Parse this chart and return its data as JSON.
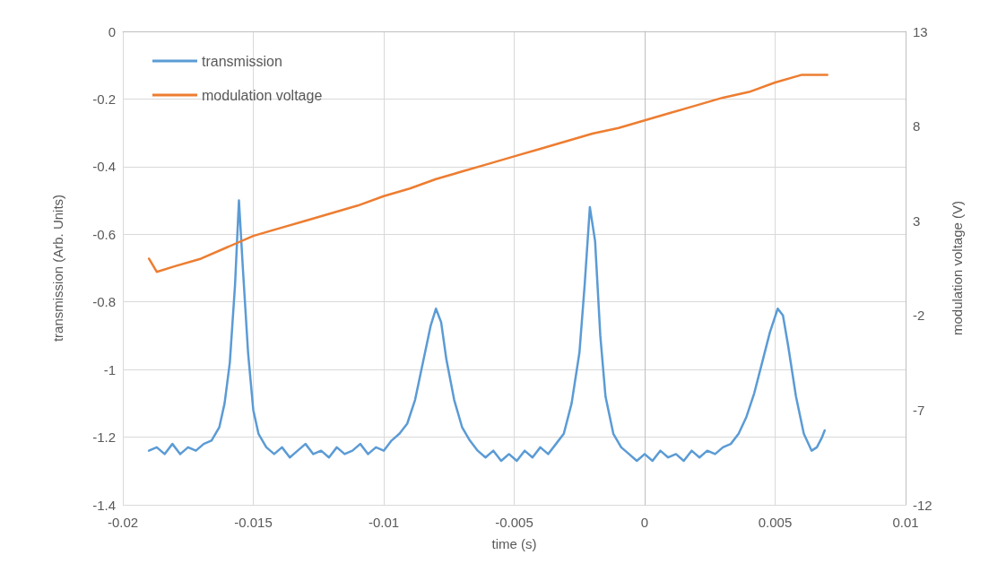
{
  "chart_data": {
    "type": "line",
    "xlabel": "time (s)",
    "ylabel": "transmission (Arb. Units)",
    "y2label": "modulation voltage (V)",
    "xlim": [
      -0.02,
      0.01
    ],
    "xticks": [
      -0.02,
      -0.015,
      -0.01,
      -0.005,
      0,
      0.005,
      0.01
    ],
    "ylim": [
      -1.4,
      0
    ],
    "yticks": [
      -1.4,
      -1.2,
      -1,
      -0.8,
      -0.6,
      -0.4,
      -0.2,
      0
    ],
    "y2lim": [
      -12,
      13
    ],
    "y2ticks": [
      -12,
      -7,
      -2,
      3,
      8,
      13
    ],
    "grid": true,
    "legend": "top left",
    "marker": "none",
    "line_style": "solid",
    "series": [
      {
        "name": "transmission",
        "color": "#5b9bd5",
        "x": [
          -0.019,
          -0.0187,
          -0.0184,
          -0.0181,
          -0.0178,
          -0.0175,
          -0.0172,
          -0.0169,
          -0.0166,
          -0.0163,
          -0.0161,
          -0.0159,
          -0.0157,
          -0.01555,
          -0.0154,
          -0.0152,
          -0.015,
          -0.0148,
          -0.0145,
          -0.0142,
          -0.0139,
          -0.0136,
          -0.0133,
          -0.013,
          -0.0127,
          -0.0124,
          -0.0121,
          -0.0118,
          -0.0115,
          -0.0112,
          -0.0109,
          -0.0106,
          -0.0103,
          -0.01,
          -0.0097,
          -0.0094,
          -0.0091,
          -0.0088,
          -0.0085,
          -0.0082,
          -0.008,
          -0.0078,
          -0.0076,
          -0.0073,
          -0.007,
          -0.0067,
          -0.0064,
          -0.0061,
          -0.0058,
          -0.0055,
          -0.0052,
          -0.0049,
          -0.0046,
          -0.0043,
          -0.004,
          -0.0037,
          -0.0034,
          -0.0031,
          -0.0028,
          -0.0025,
          -0.0023,
          -0.0021,
          -0.0019,
          -0.0017,
          -0.0015,
          -0.0012,
          -0.0009,
          -0.0006,
          -0.0003,
          0,
          0.0003,
          0.0006,
          0.0009,
          0.0012,
          0.0015,
          0.0018,
          0.0021,
          0.0024,
          0.0027,
          0.003,
          0.0033,
          0.0036,
          0.0039,
          0.0042,
          0.0045,
          0.0048,
          0.0051,
          0.0053,
          0.0055,
          0.0058,
          0.0061,
          0.0064,
          0.0066,
          0.0068,
          0.0069
        ],
        "values": [
          -1.24,
          -1.23,
          -1.25,
          -1.22,
          -1.25,
          -1.23,
          -1.24,
          -1.22,
          -1.21,
          -1.17,
          -1.1,
          -0.98,
          -0.75,
          -0.5,
          -0.7,
          -0.95,
          -1.12,
          -1.19,
          -1.23,
          -1.25,
          -1.23,
          -1.26,
          -1.24,
          -1.22,
          -1.25,
          -1.24,
          -1.26,
          -1.23,
          -1.25,
          -1.24,
          -1.22,
          -1.25,
          -1.23,
          -1.24,
          -1.21,
          -1.19,
          -1.16,
          -1.09,
          -0.98,
          -0.87,
          -0.82,
          -0.86,
          -0.97,
          -1.09,
          -1.17,
          -1.21,
          -1.24,
          -1.26,
          -1.24,
          -1.27,
          -1.25,
          -1.27,
          -1.24,
          -1.26,
          -1.23,
          -1.25,
          -1.22,
          -1.19,
          -1.1,
          -0.95,
          -0.75,
          -0.52,
          -0.62,
          -0.9,
          -1.08,
          -1.19,
          -1.23,
          -1.25,
          -1.27,
          -1.25,
          -1.27,
          -1.24,
          -1.26,
          -1.25,
          -1.27,
          -1.24,
          -1.26,
          -1.24,
          -1.25,
          -1.23,
          -1.22,
          -1.19,
          -1.14,
          -1.07,
          -0.98,
          -0.89,
          -0.82,
          -0.84,
          -0.93,
          -1.08,
          -1.19,
          -1.24,
          -1.23,
          -1.2,
          -1.18
        ]
      },
      {
        "name": "modulation voltage",
        "color": "#ed7d31",
        "axis": "y2",
        "x": [
          -0.019,
          -0.0187,
          -0.018,
          -0.017,
          -0.016,
          -0.015,
          -0.014,
          -0.013,
          -0.012,
          -0.011,
          -0.01,
          -0.009,
          -0.008,
          -0.007,
          -0.006,
          -0.005,
          -0.004,
          -0.003,
          -0.002,
          -0.001,
          0,
          0.001,
          0.002,
          0.003,
          0.004,
          0.005,
          0.006,
          0.007
        ],
        "values": [
          1.0,
          0.3,
          0.6,
          1.0,
          1.6,
          2.2,
          2.6,
          3.0,
          3.4,
          3.8,
          4.3,
          4.7,
          5.2,
          5.6,
          6.0,
          6.4,
          6.8,
          7.2,
          7.6,
          7.9,
          8.3,
          8.7,
          9.1,
          9.5,
          9.8,
          10.3,
          10.7,
          10.7
        ]
      }
    ]
  }
}
